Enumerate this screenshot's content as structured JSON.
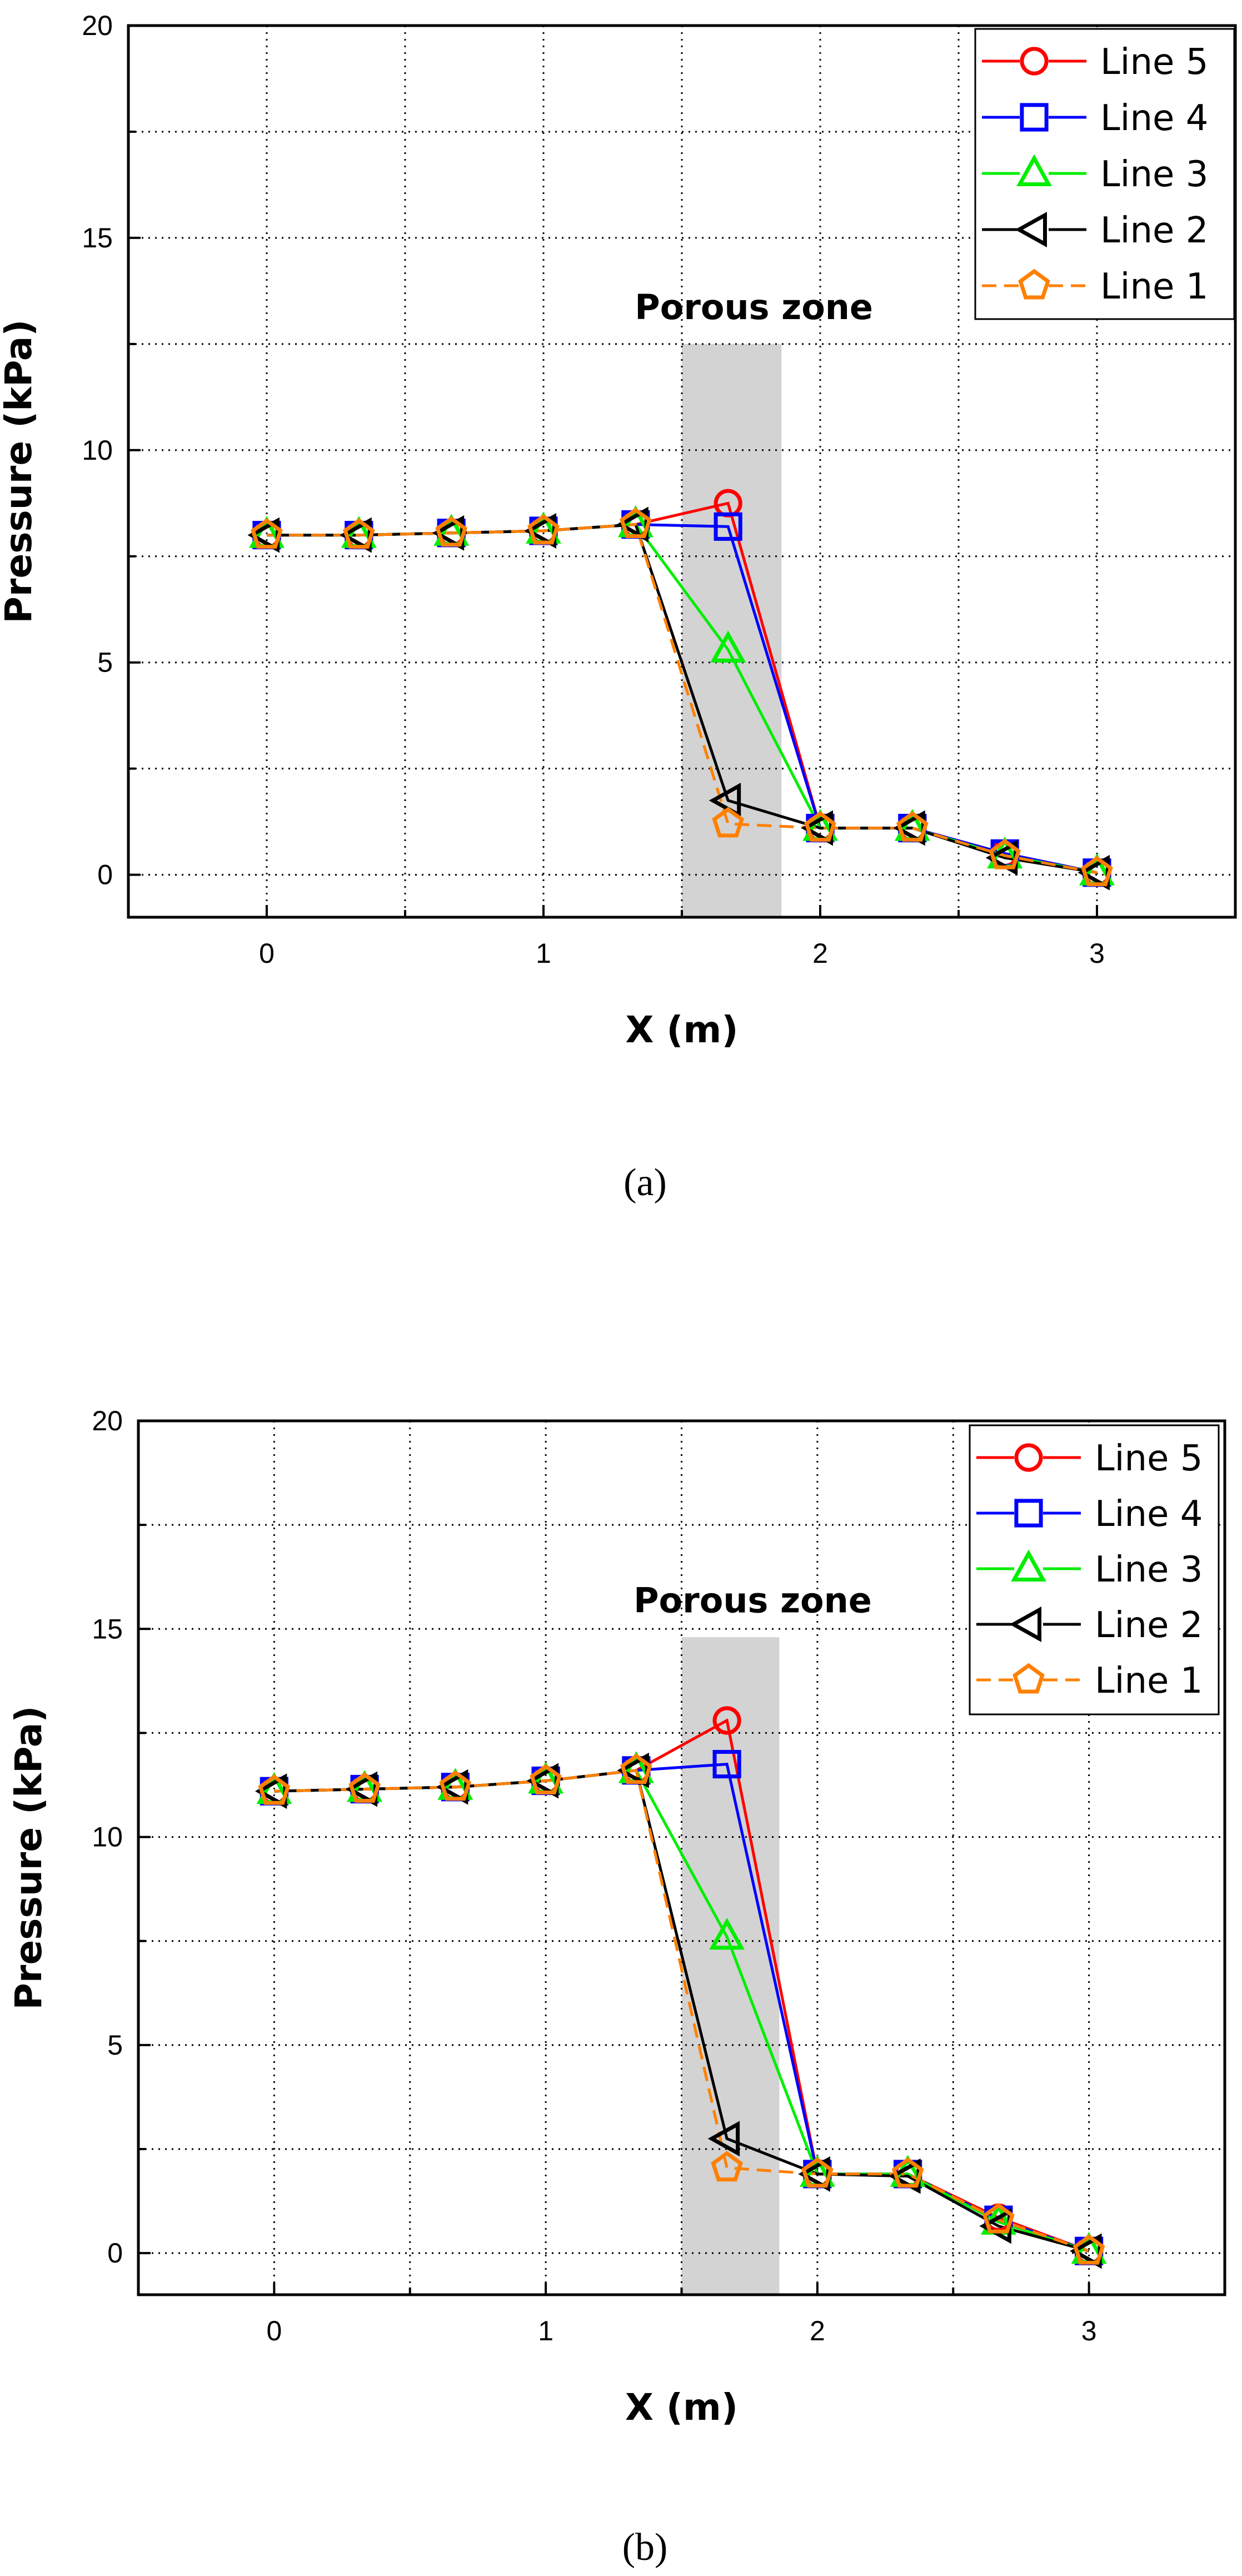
{
  "chart_data": [
    {
      "type": "line",
      "panel_label": "(a)",
      "xlabel": "X (m)",
      "ylabel": "Pressure (kPa)",
      "xlim": [
        -0.5,
        3.5
      ],
      "ylim": [
        -1,
        20
      ],
      "xticks": [
        0,
        1,
        2,
        3
      ],
      "yticks": [
        0,
        5,
        10,
        15,
        20
      ],
      "grid": true,
      "legend_position": "top-right",
      "annotation": {
        "label": "Porous zone",
        "x_start": 1.5,
        "x_end": 1.86,
        "y_top": 12.5
      },
      "series": [
        {
          "name": "Line 5",
          "marker": "circle",
          "color": "#ff0000",
          "dash": "solid",
          "x": [
            0,
            0.333,
            0.667,
            1.0,
            1.333,
            1.667,
            2.0,
            2.333,
            2.667,
            3.0
          ],
          "y": [
            8.0,
            8.0,
            8.05,
            8.1,
            8.25,
            8.75,
            1.1,
            1.1,
            0.5,
            0.05
          ]
        },
        {
          "name": "Line 4",
          "marker": "square",
          "color": "#0000ff",
          "dash": "solid",
          "x": [
            0,
            0.333,
            0.667,
            1.0,
            1.333,
            1.667,
            2.0,
            2.333,
            2.667,
            3.0
          ],
          "y": [
            8.0,
            8.0,
            8.05,
            8.1,
            8.25,
            8.2,
            1.1,
            1.1,
            0.5,
            0.05
          ]
        },
        {
          "name": "Line 3",
          "marker": "triangle-up",
          "color": "#00ee00",
          "dash": "solid",
          "x": [
            0,
            0.333,
            0.667,
            1.0,
            1.333,
            1.667,
            2.0,
            2.333,
            2.667,
            3.0
          ],
          "y": [
            8.0,
            8.0,
            8.05,
            8.1,
            8.25,
            5.3,
            1.1,
            1.1,
            0.45,
            0.05
          ]
        },
        {
          "name": "Line 2",
          "marker": "triangle-left",
          "color": "#000000",
          "dash": "solid",
          "x": [
            0,
            0.333,
            0.667,
            1.0,
            1.333,
            1.667,
            2.0,
            2.333,
            2.667,
            3.0
          ],
          "y": [
            8.0,
            8.0,
            8.05,
            8.1,
            8.25,
            1.75,
            1.1,
            1.1,
            0.4,
            0.05
          ]
        },
        {
          "name": "Line 1",
          "marker": "pentagon",
          "color": "#ff8000",
          "dash": "dashed",
          "x": [
            0,
            0.333,
            0.667,
            1.0,
            1.333,
            1.667,
            2.0,
            2.333,
            2.667,
            3.0
          ],
          "y": [
            8.0,
            8.0,
            8.05,
            8.1,
            8.25,
            1.2,
            1.1,
            1.1,
            0.45,
            0.05
          ]
        }
      ]
    },
    {
      "type": "line",
      "panel_label": "(b)",
      "xlabel": "X (m)",
      "ylabel": "Pressure (kPa)",
      "xlim": [
        -0.5,
        3.5
      ],
      "ylim": [
        -1,
        20
      ],
      "xticks": [
        0,
        1,
        2,
        3
      ],
      "yticks": [
        0,
        5,
        10,
        15,
        20
      ],
      "grid": true,
      "legend_position": "top-right",
      "annotation": {
        "label": "Porous zone",
        "x_start": 1.5,
        "x_end": 1.86,
        "y_top": 14.8
      },
      "series": [
        {
          "name": "Line 5",
          "marker": "circle",
          "color": "#ff0000",
          "dash": "solid",
          "x": [
            0,
            0.333,
            0.667,
            1.0,
            1.333,
            1.667,
            2.0,
            2.333,
            2.667,
            3.0
          ],
          "y": [
            11.1,
            11.15,
            11.2,
            11.35,
            11.6,
            12.8,
            1.9,
            1.9,
            0.85,
            0.05
          ]
        },
        {
          "name": "Line 4",
          "marker": "square",
          "color": "#0000ff",
          "dash": "solid",
          "x": [
            0,
            0.333,
            0.667,
            1.0,
            1.333,
            1.667,
            2.0,
            2.333,
            2.667,
            3.0
          ],
          "y": [
            11.1,
            11.15,
            11.2,
            11.35,
            11.6,
            11.75,
            1.9,
            1.9,
            0.8,
            0.05
          ]
        },
        {
          "name": "Line 3",
          "marker": "triangle-up",
          "color": "#00ee00",
          "dash": "solid",
          "x": [
            0,
            0.333,
            0.667,
            1.0,
            1.333,
            1.667,
            2.0,
            2.333,
            2.667,
            3.0
          ],
          "y": [
            11.1,
            11.15,
            11.2,
            11.35,
            11.6,
            7.6,
            1.9,
            1.9,
            0.75,
            0.05
          ]
        },
        {
          "name": "Line 2",
          "marker": "triangle-left",
          "color": "#000000",
          "dash": "solid",
          "x": [
            0,
            0.333,
            0.667,
            1.0,
            1.333,
            1.667,
            2.0,
            2.333,
            2.667,
            3.0
          ],
          "y": [
            11.1,
            11.15,
            11.2,
            11.35,
            11.6,
            2.75,
            1.9,
            1.85,
            0.65,
            0.05
          ]
        },
        {
          "name": "Line 1",
          "marker": "pentagon",
          "color": "#ff8000",
          "dash": "dashed",
          "x": [
            0,
            0.333,
            0.667,
            1.0,
            1.333,
            1.667,
            2.0,
            2.333,
            2.667,
            3.0
          ],
          "y": [
            11.1,
            11.15,
            11.2,
            11.35,
            11.6,
            2.05,
            1.9,
            1.9,
            0.8,
            0.05
          ]
        }
      ]
    }
  ]
}
